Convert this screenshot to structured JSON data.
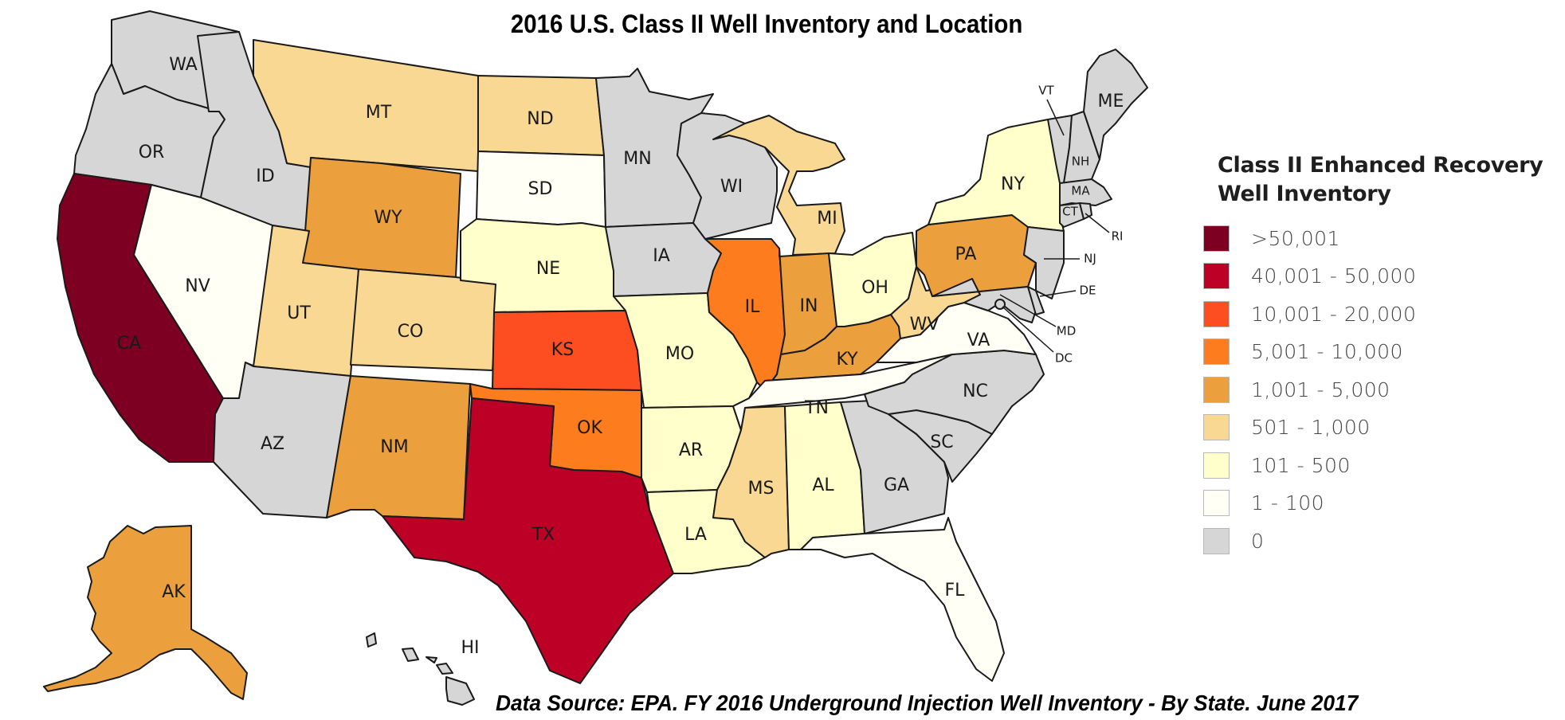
{
  "title": "2016 U.S. Class II Well Inventory and Location",
  "source": "Data Source: EPA. FY 2016 Underground Injection Well Inventory - By State. June 2017",
  "legend": {
    "title_line1": "Class II Enhanced Recovery",
    "title_line2": "Well Inventory",
    "items": [
      {
        "label": ">50,001",
        "color": "#7d0023"
      },
      {
        "label": "40,001 - 50,000",
        "color": "#bd0026"
      },
      {
        "label": "10,001 - 20,000",
        "color": "#fc4e21"
      },
      {
        "label": "5,001 - 10,000",
        "color": "#fd7c1e"
      },
      {
        "label": "1,001 - 5,000",
        "color": "#eba03d"
      },
      {
        "label": "501 - 1,000",
        "color": "#f8d893"
      },
      {
        "label": "101 - 500",
        "color": "#ffffcc"
      },
      {
        "label": "1 - 100",
        "color": "#fffff5"
      },
      {
        "label": "0",
        "color": "#d6d6d6"
      }
    ]
  },
  "chart_data": {
    "type": "choropleth",
    "title": "2016 U.S. Class II Well Inventory and Location",
    "legend_title": "Class II Enhanced Recovery Well Inventory",
    "legend_position": "right",
    "classes": [
      ">50,001",
      "40,001 - 50,000",
      "10,001 - 20,000",
      "5,001 - 10,000",
      "1,001 - 5,000",
      "501 - 1,000",
      "101 - 500",
      "1 - 100",
      "0"
    ],
    "states": {
      "CA": ">50,001",
      "TX": "40,001 - 50,000",
      "KS": "10,001 - 20,000",
      "OK": "5,001 - 10,000",
      "IL": "5,001 - 10,000",
      "WY": "1,001 - 5,000",
      "NM": "1,001 - 5,000",
      "IN": "1,001 - 5,000",
      "KY": "1,001 - 5,000",
      "PA": "1,001 - 5,000",
      "AK": "1,001 - 5,000",
      "MT": "501 - 1,000",
      "ND": "501 - 1,000",
      "UT": "501 - 1,000",
      "CO": "501 - 1,000",
      "MI": "501 - 1,000",
      "MS": "501 - 1,000",
      "WV": "501 - 1,000",
      "NE": "101 - 500",
      "MO": "101 - 500",
      "AR": "101 - 500",
      "LA": "101 - 500",
      "AL": "101 - 500",
      "OH": "101 - 500",
      "NY": "101 - 500",
      "NV": "1 - 100",
      "SD": "1 - 100",
      "TN": "1 - 100",
      "VA": "1 - 100",
      "FL": "1 - 100",
      "WA": "0",
      "OR": "0",
      "ID": "0",
      "AZ": "0",
      "MN": "0",
      "IA": "0",
      "WI": "0",
      "NC": "0",
      "SC": "0",
      "GA": "0",
      "HI": "0",
      "ME": "0",
      "VT": "0",
      "NH": "0",
      "MA": "0",
      "CT": "0",
      "RI": "0",
      "NJ": "0",
      "DE": "0",
      "MD": "0",
      "DC": "0"
    },
    "source": "EPA. FY 2016 Underground Injection Well Inventory - By State. June 2017"
  },
  "labels": {
    "WA": "WA",
    "OR": "OR",
    "CA": "CA",
    "ID": "ID",
    "NV": "NV",
    "MT": "MT",
    "WY": "WY",
    "UT": "UT",
    "CO": "CO",
    "AZ": "AZ",
    "NM": "NM",
    "ND": "ND",
    "SD": "SD",
    "NE": "NE",
    "KS": "KS",
    "OK": "OK",
    "TX": "TX",
    "MN": "MN",
    "IA": "IA",
    "MO": "MO",
    "AR": "AR",
    "LA": "LA",
    "WI": "WI",
    "IL": "IL",
    "MI": "MI",
    "IN": "IN",
    "OH": "OH",
    "KY": "KY",
    "TN": "TN",
    "MS": "MS",
    "AL": "AL",
    "GA": "GA",
    "FL": "FL",
    "SC": "SC",
    "NC": "NC",
    "VA": "VA",
    "WV": "WV",
    "PA": "PA",
    "NY": "NY",
    "VT": "VT",
    "NH": "NH",
    "ME": "ME",
    "MA": "MA",
    "CT": "CT",
    "RI": "RI",
    "NJ": "NJ",
    "DE": "DE",
    "MD": "MD",
    "DC": "DC",
    "AK": "AK",
    "HI": "HI"
  }
}
